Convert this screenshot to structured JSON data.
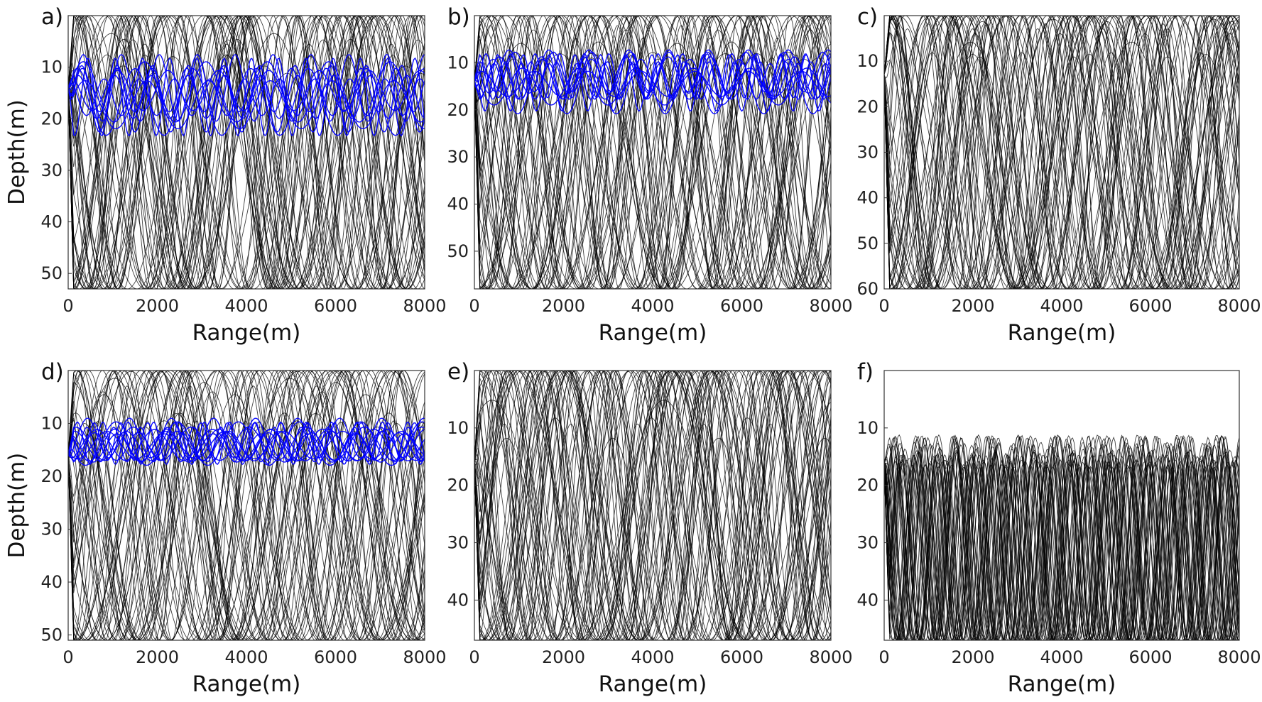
{
  "chart_data": [
    {
      "type": "line",
      "panel_label": "a)",
      "xlabel": "Range(m)",
      "ylabel": "Depth(m)",
      "xlim": [
        0,
        8000
      ],
      "ylim": [
        53,
        0
      ],
      "y_inverted": true,
      "xticks": [
        0,
        2000,
        4000,
        6000,
        8000
      ],
      "yticks": [
        10,
        20,
        30,
        40,
        50
      ],
      "source_depth": 14,
      "series": [
        {
          "color": "#000000",
          "kind": "ray-fan",
          "count": 44,
          "bottom_depth": 53,
          "duct": null
        },
        {
          "color": "#0000ff",
          "kind": "trapped-rays",
          "count": 10,
          "duct": [
            7.5,
            24
          ]
        }
      ]
    },
    {
      "type": "line",
      "panel_label": "b)",
      "xlabel": "Range(m)",
      "ylabel": "",
      "xlim": [
        0,
        8000
      ],
      "ylim": [
        58,
        0
      ],
      "y_inverted": true,
      "xticks": [
        0,
        2000,
        4000,
        6000,
        8000
      ],
      "yticks": [
        10,
        20,
        30,
        40,
        50
      ],
      "source_depth": 14,
      "series": [
        {
          "color": "#000000",
          "kind": "ray-fan",
          "count": 44,
          "bottom_depth": 58,
          "duct": null
        },
        {
          "color": "#0000ff",
          "kind": "trapped-rays",
          "count": 10,
          "duct": [
            7,
            21
          ]
        }
      ]
    },
    {
      "type": "line",
      "panel_label": "c)",
      "xlabel": "Range(m)",
      "ylabel": "",
      "xlim": [
        0,
        8000
      ],
      "ylim": [
        60,
        0
      ],
      "y_inverted": true,
      "xticks": [
        0,
        2000,
        4000,
        6000,
        8000
      ],
      "yticks": [
        10,
        20,
        30,
        40,
        50,
        60
      ],
      "source_depth": 13,
      "series": [
        {
          "color": "#000000",
          "kind": "ray-fan",
          "count": 48,
          "bottom_depth": 60,
          "duct": null
        }
      ]
    },
    {
      "type": "line",
      "panel_label": "d)",
      "xlabel": "Range(m)",
      "ylabel": "Depth(m)",
      "xlim": [
        0,
        8000
      ],
      "ylim": [
        51,
        0
      ],
      "y_inverted": true,
      "xticks": [
        0,
        2000,
        4000,
        6000,
        8000
      ],
      "yticks": [
        10,
        20,
        30,
        40,
        50
      ],
      "source_depth": 16,
      "series": [
        {
          "color": "#000000",
          "kind": "ray-fan",
          "count": 44,
          "bottom_depth": 51,
          "duct": null
        },
        {
          "color": "#0000ff",
          "kind": "trapped-rays",
          "count": 12,
          "duct": [
            9,
            18
          ]
        }
      ]
    },
    {
      "type": "line",
      "panel_label": "e)",
      "xlabel": "Range(m)",
      "ylabel": "",
      "xlim": [
        0,
        8000
      ],
      "ylim": [
        47,
        0
      ],
      "y_inverted": true,
      "xticks": [
        0,
        2000,
        4000,
        6000,
        8000
      ],
      "yticks": [
        10,
        20,
        30,
        40
      ],
      "source_depth": 16,
      "series": [
        {
          "color": "#000000",
          "kind": "ray-fan",
          "count": 48,
          "bottom_depth": 47,
          "duct": null
        }
      ]
    },
    {
      "type": "line",
      "panel_label": "f)",
      "xlabel": "Range(m)",
      "ylabel": "",
      "xlim": [
        0,
        8000
      ],
      "ylim": [
        47,
        0
      ],
      "y_inverted": true,
      "xticks": [
        0,
        2000,
        4000,
        6000,
        8000
      ],
      "yticks": [
        10,
        20,
        30,
        40
      ],
      "source_depth": 16,
      "series": [
        {
          "color": "#000000",
          "kind": "ray-fan",
          "count": 40,
          "bottom_depth": 47,
          "duct": [
            11,
            47
          ]
        }
      ]
    }
  ]
}
